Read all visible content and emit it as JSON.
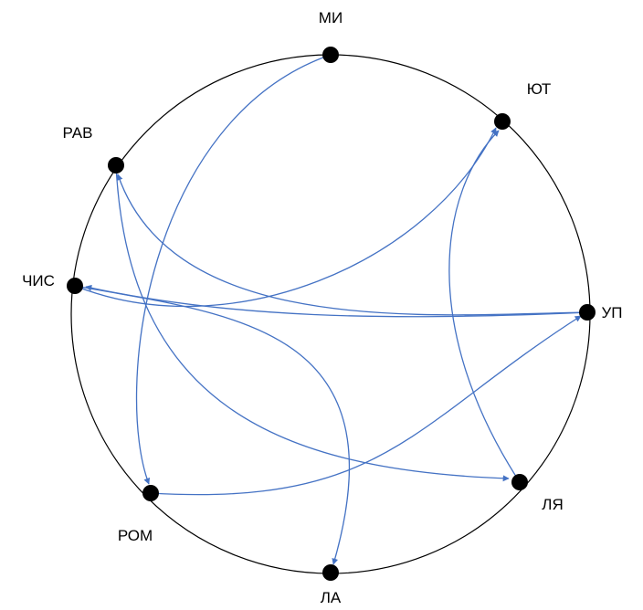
{
  "colors": {
    "circle_stroke": "#000000",
    "node_fill": "#000000",
    "edge_stroke": "#4472c4",
    "label_text": "#000000"
  },
  "nodes": [
    {
      "id": "mi",
      "label": "МИ"
    },
    {
      "id": "yut",
      "label": "ЮТ"
    },
    {
      "id": "rav",
      "label": "РАВ"
    },
    {
      "id": "chis",
      "label": "ЧИС"
    },
    {
      "id": "up",
      "label": "УП"
    },
    {
      "id": "lya",
      "label": "ЛЯ"
    },
    {
      "id": "rom",
      "label": "РОМ"
    },
    {
      "id": "la",
      "label": "ЛА"
    }
  ],
  "edges": [
    {
      "from": "МИ",
      "to": "РОМ"
    },
    {
      "from": "ЧИС",
      "to": "ЮТ"
    },
    {
      "from": "УП",
      "to": "РАВ"
    },
    {
      "from": "УП",
      "to": "ЧИС"
    },
    {
      "from": "ЧИС",
      "to": "ЛА"
    },
    {
      "from": "РАВ",
      "to": "ЛЯ"
    },
    {
      "from": "ЛЯ",
      "to": "ЮТ"
    },
    {
      "from": "РОМ",
      "to": "УП"
    }
  ]
}
